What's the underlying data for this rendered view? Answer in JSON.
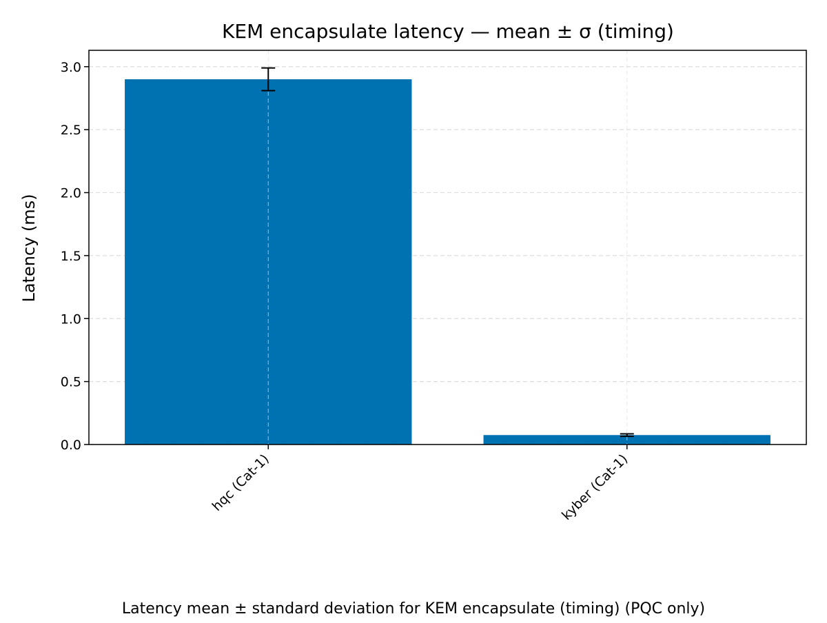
{
  "chart_data": {
    "type": "bar",
    "title": "KEM encapsulate latency — mean ± σ (timing)",
    "xlabel": "",
    "ylabel": "Latency (ms)",
    "caption": "Latency mean ± standard deviation for KEM encapsulate (timing) (PQC only)",
    "categories": [
      "hqc (Cat-1)",
      "kyber (Cat-1)"
    ],
    "values": [
      2.9,
      0.075
    ],
    "error": [
      0.09,
      0.01
    ],
    "ylim": [
      0,
      3.13
    ],
    "yticks": [
      "0.0",
      "0.5",
      "1.0",
      "1.5",
      "2.0",
      "2.5",
      "3.0"
    ],
    "grid": true,
    "colors": {
      "bar": "#0072B2",
      "error": "#000000",
      "grid": "#DDDDDD"
    }
  }
}
